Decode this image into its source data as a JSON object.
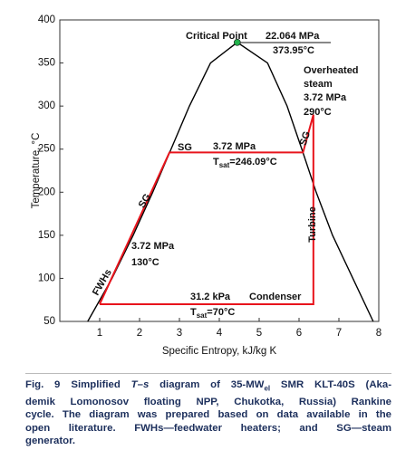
{
  "chart_data": {
    "type": "line",
    "xlabel": "Specific Entropy, kJ/kg K",
    "ylabel": "Temperature, °C",
    "xlim": [
      0,
      8
    ],
    "ylim": [
      50,
      400
    ],
    "xticks": [
      1,
      2,
      3,
      4,
      5,
      6,
      7,
      8
    ],
    "yticks": [
      50,
      100,
      150,
      200,
      250,
      300,
      350,
      400
    ],
    "series": [
      {
        "color": "#000000",
        "x": [
          0.7,
          1.31,
          1.84,
          2.33,
          2.79,
          3.25,
          3.78,
          4.45,
          5.21,
          5.7,
          6.07,
          6.43,
          6.84,
          7.35,
          7.86
        ],
        "y": [
          50,
          100,
          150,
          200,
          250,
          300,
          350,
          373.95,
          350,
          300,
          250,
          200,
          150,
          100,
          50
        ]
      },
      {
        "color": "#e8141c",
        "x": [
          1.0,
          2.75,
          6.1,
          6.36,
          6.36,
          1.0
        ],
        "y": [
          70,
          246.09,
          246.09,
          290,
          70,
          70
        ]
      }
    ],
    "critical_point": {
      "x": 4.45,
      "y": 373.95,
      "color": "#22b14c"
    },
    "annotations": [
      "Critical Point",
      "22.064 MPa",
      "373.95°C",
      "Overheated",
      "steam",
      "3.72 MPa",
      "290°C",
      "SG",
      "3.72 MPa",
      {
        "main": "T",
        "sub": "sat",
        "rest": "=246.09°C"
      },
      "SG",
      "SG",
      "Turbine",
      "3.72 MPa",
      "130°C",
      "FWHs",
      "31.2 kPa",
      "Condenser",
      {
        "main": "T",
        "sub": "sat",
        "rest": "=70°C"
      }
    ]
  },
  "caption": {
    "lines": [
      [
        "Fig. 9",
        "Simplified ",
        "T",
        "–",
        "s",
        " diagram of 35-MW",
        "el",
        " SMR KLT-40S (Aka-"
      ],
      [
        "demik Lomonosov floating NPP, Chukotka, Russia) Rankine"
      ],
      [
        "cycle. The diagram was prepared based on data available in the"
      ],
      [
        "open literature. FWHs—feedwater heaters; and SG—steam"
      ],
      [
        "generator."
      ]
    ]
  }
}
